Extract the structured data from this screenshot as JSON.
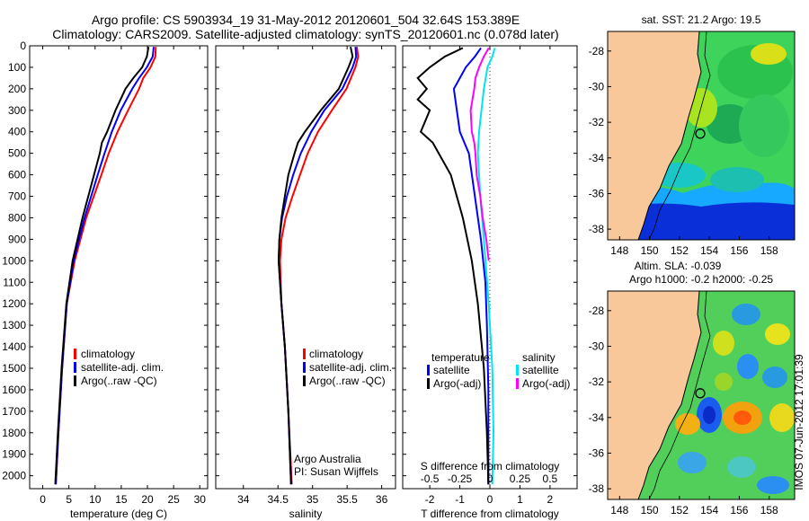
{
  "header": {
    "line1": "Argo profile: CS 5903934_19 31-May-2012 20120601_504 32.64S 153.389E",
    "line2": "Climatology: CARS2009. Satellite-adjusted climatology: synTS_20120601.nc (0.078d later)"
  },
  "footer_stamp": "IMOS 07-Jun-2012 17:01:39",
  "colors": {
    "red": "#ff0000",
    "blue": "#0000ff",
    "black": "#000000",
    "cyan": "#00e5ee",
    "magenta": "#ff00ff",
    "land": "#f8c89a"
  },
  "chart_data": [
    {
      "type": "line",
      "xlabel": "temperature (deg C)",
      "ylabel": "",
      "xlim": [
        -2.5,
        31.5
      ],
      "ylim": [
        0,
        2060
      ],
      "xticks": [
        0,
        5,
        10,
        15,
        20,
        25,
        30
      ],
      "yticks": [
        0,
        100,
        200,
        300,
        400,
        500,
        600,
        700,
        800,
        900,
        1000,
        1100,
        1200,
        1300,
        1400,
        1500,
        1600,
        1700,
        1800,
        1900,
        2000
      ],
      "legend": [
        "climatology",
        "satellite-adj. clim.",
        "Argo(..raw -QC)"
      ],
      "series": [
        {
          "name": "climatology",
          "color": "red",
          "depth": [
            5,
            50,
            100,
            150,
            200,
            300,
            400,
            500,
            600,
            800,
            1000,
            1200,
            1500,
            1800,
            2040
          ],
          "values": [
            21.6,
            21.5,
            20.6,
            19.2,
            18.4,
            16.3,
            14.3,
            12.6,
            11.2,
            8.3,
            6.1,
            4.6,
            3.7,
            3.0,
            2.5
          ]
        },
        {
          "name": "satellite-adj. clim.",
          "color": "blue",
          "depth": [
            5,
            50,
            100,
            150,
            200,
            300,
            400,
            500,
            600,
            800,
            1000,
            1200,
            1500,
            1800,
            2040
          ],
          "values": [
            21.2,
            21.0,
            19.9,
            18.4,
            17.1,
            14.9,
            13.2,
            11.8,
            10.5,
            8.0,
            5.9,
            4.6,
            3.7,
            3.0,
            2.5
          ]
        },
        {
          "name": "Argo(..raw -QC)",
          "color": "black",
          "depth": [
            5,
            50,
            100,
            150,
            200,
            300,
            400,
            450,
            500,
            600,
            800,
            1000,
            1200,
            1500,
            1800,
            2040
          ],
          "values": [
            20.2,
            19.9,
            19.0,
            17.3,
            15.8,
            13.9,
            12.3,
            11.3,
            10.9,
            9.8,
            7.6,
            5.7,
            4.5,
            3.6,
            2.9,
            2.4
          ]
        }
      ]
    },
    {
      "type": "line",
      "xlabel": "salinity",
      "ylabel": "",
      "xlim": [
        33.6,
        36.2
      ],
      "ylim": [
        0,
        2060
      ],
      "xticks": [
        34,
        34.5,
        35,
        35.5,
        36
      ],
      "legend": [
        "climatology",
        "satellite-adj. clim.",
        "Argo(..raw -QC)"
      ],
      "annotations": [
        "Argo Australia",
        "PI: Susan Wijffels"
      ],
      "series": [
        {
          "name": "climatology",
          "color": "red",
          "depth": [
            5,
            50,
            100,
            200,
            300,
            400,
            500,
            600,
            700,
            800,
            900,
            1000,
            1200,
            1400,
            1700,
            2040
          ],
          "values": [
            35.64,
            35.66,
            35.62,
            35.49,
            35.28,
            35.08,
            34.93,
            34.82,
            34.71,
            34.61,
            34.55,
            34.53,
            34.55,
            34.6,
            34.65,
            34.7
          ]
        },
        {
          "name": "satellite-adj. clim.",
          "color": "blue",
          "depth": [
            5,
            50,
            100,
            200,
            300,
            400,
            500,
            600,
            700,
            800,
            900,
            1000,
            1200,
            1400,
            1700,
            2040
          ],
          "values": [
            35.62,
            35.63,
            35.58,
            35.43,
            35.17,
            34.98,
            34.83,
            34.72,
            34.63,
            34.56,
            34.52,
            34.51,
            34.55,
            34.6,
            34.65,
            34.69
          ]
        },
        {
          "name": "Argo(..raw -QC)",
          "color": "black",
          "depth": [
            5,
            50,
            100,
            200,
            300,
            400,
            450,
            500,
            600,
            700,
            800,
            900,
            1000,
            1200,
            1400,
            1700,
            2040
          ],
          "values": [
            35.55,
            35.58,
            35.52,
            35.38,
            35.12,
            34.89,
            34.79,
            34.74,
            34.65,
            34.6,
            34.55,
            34.52,
            34.51,
            34.55,
            34.6,
            34.65,
            34.69
          ]
        }
      ]
    },
    {
      "type": "line",
      "xlabel": "T difference from climatology",
      "xlabel_top": "S difference from climatology",
      "xlim": [
        -2.9,
        2.9
      ],
      "ylim": [
        0,
        2060
      ],
      "xticks": [
        -2,
        -1,
        0,
        1,
        2
      ],
      "xticks_S": [
        -0.5,
        -0.25,
        0,
        0.25,
        0.5
      ],
      "legend_groups": [
        {
          "title": "temperature",
          "entries": [
            "satellite",
            "Argo(-adj)"
          ]
        },
        {
          "title": "salinity",
          "entries": [
            "satellite",
            "Argo(-adj)"
          ]
        }
      ],
      "series": [
        {
          "name": "satellite",
          "group": "temperature",
          "color": "blue",
          "depth": [
            10,
            50,
            100,
            150,
            200,
            300,
            400,
            500,
            700,
            900,
            1100,
            1300,
            1600,
            2040
          ],
          "values": [
            -0.3,
            -0.5,
            -0.8,
            -1.0,
            -1.2,
            -1.1,
            -1.0,
            -0.7,
            -0.5,
            -0.3,
            -0.15,
            -0.1,
            -0.05,
            -0.05
          ]
        },
        {
          "name": "Argo(-adj)",
          "group": "temperature",
          "color": "black",
          "depth": [
            10,
            50,
            100,
            150,
            200,
            250,
            300,
            400,
            450,
            500,
            600,
            800,
            1000,
            1200,
            1500,
            1800,
            2040
          ],
          "values": [
            -0.9,
            -1.5,
            -2.0,
            -2.4,
            -2.1,
            -2.4,
            -2.0,
            -2.3,
            -1.9,
            -1.7,
            -1.3,
            -0.9,
            -0.6,
            -0.4,
            -0.2,
            -0.1,
            -0.05
          ]
        },
        {
          "name": "satellite",
          "group": "salinity",
          "color": "cyan",
          "depth": [
            10,
            50,
            100,
            200,
            300,
            400,
            500,
            600,
            700,
            900,
            1200,
            1500,
            1800,
            2040
          ],
          "values": [
            0.04,
            0.02,
            -0.02,
            -0.05,
            -0.07,
            -0.09,
            -0.1,
            -0.09,
            -0.08,
            -0.05,
            -0.01,
            0.02,
            0.03,
            0.02
          ]
        },
        {
          "name": "Argo(-adj)",
          "group": "salinity",
          "color": "magenta",
          "depth": [
            10,
            50,
            100,
            150,
            200,
            300,
            400,
            450,
            500,
            600,
            700,
            800,
            900,
            1000
          ],
          "values": [
            -0.01,
            -0.05,
            -0.09,
            -0.12,
            -0.13,
            -0.16,
            -0.15,
            -0.13,
            -0.12,
            -0.11,
            -0.08,
            -0.06,
            -0.03,
            -0.01
          ]
        }
      ]
    },
    {
      "type": "heatmap",
      "title": "sat. SST: 21.2 Argo: 19.5",
      "xlim": [
        147.2,
        159.7
      ],
      "ylim": [
        -38.6,
        -26.9
      ],
      "xticks": [
        148,
        150,
        152,
        154,
        156,
        158
      ],
      "yticks": [
        -28,
        -30,
        -32,
        -34,
        -36,
        -38
      ],
      "marker": {
        "lon": 153.389,
        "lat": -32.64
      }
    },
    {
      "type": "heatmap",
      "title": "Altim. SLA: -0.039",
      "subtitle": "Argo h1000: -0.2 h2000: -0.25",
      "xlim": [
        147.2,
        159.7
      ],
      "ylim": [
        -38.6,
        -26.9
      ],
      "xticks": [
        148,
        150,
        152,
        154,
        156,
        158
      ],
      "yticks": [
        -28,
        -30,
        -32,
        -34,
        -36,
        -38
      ],
      "marker": {
        "lon": 153.389,
        "lat": -32.64
      }
    }
  ]
}
